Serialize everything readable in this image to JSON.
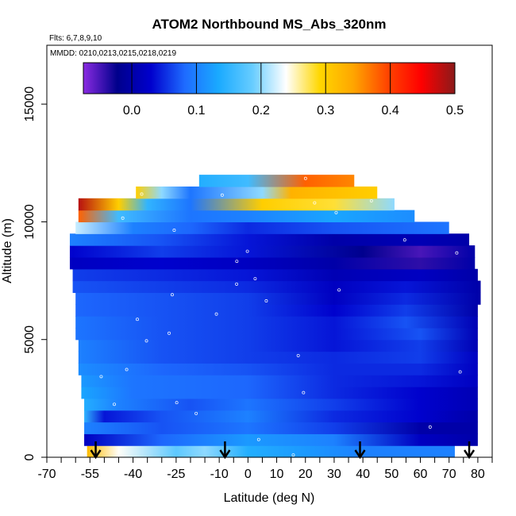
{
  "chart_data": {
    "type": "heatmap",
    "title": "ATOM2 Northbound MS_Abs_320nm",
    "flights_label": "Flts: 6,7,8,9,10",
    "dates_label": "MMDD: 0210,0213,0215,0218,0219",
    "xlabel": "Latitude (deg N)",
    "ylabel": "Altitude (m)",
    "xlim": [
      -70,
      85
    ],
    "ylim": [
      0,
      17500
    ],
    "x_ticks": [
      -70,
      -55,
      -40,
      -25,
      -10,
      0,
      10,
      20,
      30,
      40,
      50,
      60,
      70,
      80
    ],
    "x_minor_ticks": [
      -65,
      -60,
      -50,
      -45,
      -35,
      -30,
      -20,
      -15,
      -5,
      5,
      15,
      25,
      35,
      45,
      55,
      65,
      75,
      85
    ],
    "y_ticks": [
      0,
      5000,
      10000,
      15000
    ],
    "colorbar": {
      "range": [
        -0.075,
        0.5
      ],
      "ticks": [
        0.0,
        0.1,
        0.2,
        0.3,
        0.4,
        0.5
      ],
      "tick_labels": [
        "0.0",
        "0.1",
        "0.2",
        "0.3",
        "0.4",
        "0.5"
      ],
      "colors": [
        "#8a2be2",
        "#00008b",
        "#0000cd",
        "#1e6bff",
        "#1aaaff",
        "#66ccff",
        "#ffffff",
        "#ffd700",
        "#ffa500",
        "#ff4500",
        "#ff0000",
        "#8b1a1a"
      ]
    },
    "arrows_latitude": [
      -53,
      -8,
      39,
      77
    ],
    "layers": [
      {
        "alt": 250,
        "lat": [
          -56,
          72
        ],
        "values": [
          {
            "x": -56,
            "v": 0.32
          },
          {
            "x": -45,
            "v": 0.24
          },
          {
            "x": -25,
            "v": 0.18
          },
          {
            "x": -15,
            "v": 0.2
          },
          {
            "x": 0,
            "v": 0.14
          },
          {
            "x": 20,
            "v": 0.12
          },
          {
            "x": 40,
            "v": 0.1
          },
          {
            "x": 60,
            "v": 0.1
          },
          {
            "x": 72,
            "v": 0.1
          }
        ]
      },
      {
        "alt": 750,
        "lat": [
          -57,
          80
        ],
        "values": [
          {
            "x": -57,
            "v": 0.02
          },
          {
            "x": -30,
            "v": 0.08
          },
          {
            "x": 0,
            "v": 0.12
          },
          {
            "x": 30,
            "v": 0.1
          },
          {
            "x": 60,
            "v": 0.02
          },
          {
            "x": 80,
            "v": 0.0
          }
        ]
      },
      {
        "alt": 1250,
        "lat": [
          -57,
          80
        ],
        "values": [
          {
            "x": -57,
            "v": 0.1
          },
          {
            "x": -30,
            "v": 0.07
          },
          {
            "x": 0,
            "v": 0.09
          },
          {
            "x": 30,
            "v": 0.06
          },
          {
            "x": 60,
            "v": 0.0
          },
          {
            "x": 80,
            "v": 0.0
          }
        ]
      },
      {
        "alt": 1750,
        "lat": [
          -57,
          80
        ],
        "values": [
          {
            "x": -57,
            "v": 0.15
          },
          {
            "x": -50,
            "v": 0.04
          },
          {
            "x": -30,
            "v": 0.07
          },
          {
            "x": 0,
            "v": 0.1
          },
          {
            "x": 30,
            "v": 0.05
          },
          {
            "x": 60,
            "v": 0.03
          },
          {
            "x": 80,
            "v": 0.0
          }
        ]
      },
      {
        "alt": 2250,
        "lat": [
          -57,
          80
        ],
        "values": [
          {
            "x": -57,
            "v": 0.14
          },
          {
            "x": -45,
            "v": 0.1
          },
          {
            "x": -20,
            "v": 0.07
          },
          {
            "x": 0,
            "v": 0.09
          },
          {
            "x": 30,
            "v": 0.06
          },
          {
            "x": 60,
            "v": 0.03
          },
          {
            "x": 80,
            "v": 0.01
          }
        ]
      },
      {
        "alt": 2750,
        "lat": [
          -58,
          80
        ],
        "values": [
          {
            "x": -58,
            "v": 0.13
          },
          {
            "x": -40,
            "v": 0.09
          },
          {
            "x": 0,
            "v": 0.08
          },
          {
            "x": 30,
            "v": 0.05
          },
          {
            "x": 60,
            "v": 0.03
          },
          {
            "x": 80,
            "v": 0.01
          }
        ]
      },
      {
        "alt": 3250,
        "lat": [
          -58,
          80
        ],
        "values": [
          {
            "x": -58,
            "v": 0.12
          },
          {
            "x": -40,
            "v": 0.09
          },
          {
            "x": 0,
            "v": 0.08
          },
          {
            "x": 30,
            "v": 0.05
          },
          {
            "x": 60,
            "v": 0.04
          },
          {
            "x": 80,
            "v": 0.02
          }
        ]
      },
      {
        "alt": 3750,
        "lat": [
          -59,
          80
        ],
        "values": [
          {
            "x": -59,
            "v": 0.11
          },
          {
            "x": -30,
            "v": 0.08
          },
          {
            "x": 0,
            "v": 0.07
          },
          {
            "x": 30,
            "v": 0.05
          },
          {
            "x": 60,
            "v": 0.05
          },
          {
            "x": 80,
            "v": 0.02
          }
        ]
      },
      {
        "alt": 4250,
        "lat": [
          -59,
          80
        ],
        "values": [
          {
            "x": -59,
            "v": 0.1
          },
          {
            "x": -30,
            "v": 0.07
          },
          {
            "x": 0,
            "v": 0.06
          },
          {
            "x": 30,
            "v": 0.05
          },
          {
            "x": 60,
            "v": 0.06
          },
          {
            "x": 80,
            "v": 0.02
          }
        ]
      },
      {
        "alt": 4750,
        "lat": [
          -59,
          80
        ],
        "values": [
          {
            "x": -59,
            "v": 0.1
          },
          {
            "x": -30,
            "v": 0.07
          },
          {
            "x": 0,
            "v": 0.06
          },
          {
            "x": 30,
            "v": 0.04
          },
          {
            "x": 60,
            "v": 0.06
          },
          {
            "x": 80,
            "v": 0.01
          }
        ]
      },
      {
        "alt": 5250,
        "lat": [
          -60,
          80
        ],
        "values": [
          {
            "x": -60,
            "v": 0.09
          },
          {
            "x": -30,
            "v": 0.07
          },
          {
            "x": 0,
            "v": 0.06
          },
          {
            "x": 30,
            "v": 0.04
          },
          {
            "x": 60,
            "v": 0.07
          },
          {
            "x": 80,
            "v": 0.01
          }
        ]
      },
      {
        "alt": 5750,
        "lat": [
          -60,
          80
        ],
        "values": [
          {
            "x": -60,
            "v": 0.09
          },
          {
            "x": -30,
            "v": 0.07
          },
          {
            "x": 0,
            "v": 0.06
          },
          {
            "x": 30,
            "v": 0.04
          },
          {
            "x": 55,
            "v": 0.07
          },
          {
            "x": 80,
            "v": 0.01
          }
        ]
      },
      {
        "alt": 6250,
        "lat": [
          -60,
          80
        ],
        "values": [
          {
            "x": -60,
            "v": 0.08
          },
          {
            "x": -30,
            "v": 0.07
          },
          {
            "x": 0,
            "v": 0.06
          },
          {
            "x": 30,
            "v": 0.03
          },
          {
            "x": 55,
            "v": 0.06
          },
          {
            "x": 80,
            "v": 0.0
          }
        ]
      },
      {
        "alt": 6750,
        "lat": [
          -60,
          81
        ],
        "values": [
          {
            "x": -60,
            "v": 0.08
          },
          {
            "x": -30,
            "v": 0.07
          },
          {
            "x": 0,
            "v": 0.06
          },
          {
            "x": 30,
            "v": 0.02
          },
          {
            "x": 55,
            "v": 0.05
          },
          {
            "x": 81,
            "v": 0.0
          }
        ]
      },
      {
        "alt": 7250,
        "lat": [
          -61,
          81
        ],
        "values": [
          {
            "x": -61,
            "v": 0.07
          },
          {
            "x": -30,
            "v": 0.06
          },
          {
            "x": 0,
            "v": 0.05
          },
          {
            "x": 30,
            "v": 0.02
          },
          {
            "x": 55,
            "v": 0.04
          },
          {
            "x": 81,
            "v": 0.0
          }
        ]
      },
      {
        "alt": 7750,
        "lat": [
          -61,
          80
        ],
        "values": [
          {
            "x": -61,
            "v": 0.06
          },
          {
            "x": -30,
            "v": 0.05
          },
          {
            "x": 0,
            "v": 0.04
          },
          {
            "x": 30,
            "v": 0.01
          },
          {
            "x": 60,
            "v": 0.02
          },
          {
            "x": 80,
            "v": 0.0
          }
        ]
      },
      {
        "alt": 8250,
        "lat": [
          -62,
          79
        ],
        "values": [
          {
            "x": -62,
            "v": 0.02
          },
          {
            "x": -30,
            "v": 0.03
          },
          {
            "x": 0,
            "v": 0.02
          },
          {
            "x": 30,
            "v": 0.0
          },
          {
            "x": 60,
            "v": -0.04
          },
          {
            "x": 79,
            "v": 0.0
          }
        ]
      },
      {
        "alt": 8750,
        "lat": [
          -62,
          79
        ],
        "values": [
          {
            "x": -62,
            "v": 0.03
          },
          {
            "x": -30,
            "v": 0.06
          },
          {
            "x": 0,
            "v": 0.04
          },
          {
            "x": 40,
            "v": -0.02
          },
          {
            "x": 60,
            "v": -0.05
          },
          {
            "x": 79,
            "v": 0.0
          }
        ]
      },
      {
        "alt": 9250,
        "lat": [
          -62,
          77
        ],
        "values": [
          {
            "x": -62,
            "v": 0.1
          },
          {
            "x": -30,
            "v": 0.07
          },
          {
            "x": 0,
            "v": 0.04
          },
          {
            "x": 30,
            "v": 0.0
          },
          {
            "x": 60,
            "v": 0.01
          },
          {
            "x": 77,
            "v": 0.0
          }
        ]
      },
      {
        "alt": 9750,
        "lat": [
          -60,
          70
        ],
        "values": [
          {
            "x": -60,
            "v": 0.22
          },
          {
            "x": -40,
            "v": 0.1
          },
          {
            "x": -20,
            "v": 0.08
          },
          {
            "x": 0,
            "v": 0.05
          },
          {
            "x": 30,
            "v": 0.07
          },
          {
            "x": 70,
            "v": 0.09
          }
        ]
      },
      {
        "alt": 10250,
        "lat": [
          -59,
          58
        ],
        "values": [
          {
            "x": -59,
            "v": 0.38
          },
          {
            "x": -45,
            "v": 0.16
          },
          {
            "x": -20,
            "v": 0.09
          },
          {
            "x": 0,
            "v": 0.1
          },
          {
            "x": 30,
            "v": 0.13
          },
          {
            "x": 58,
            "v": 0.11
          }
        ]
      },
      {
        "alt": 10750,
        "lat": [
          -59,
          51
        ],
        "values": [
          {
            "x": -59,
            "v": 0.48
          },
          {
            "x": -45,
            "v": 0.3
          },
          {
            "x": -35,
            "v": 0.15
          },
          {
            "x": -20,
            "v": 0.09
          },
          {
            "x": 5,
            "v": 0.3
          },
          {
            "x": 30,
            "v": 0.28
          },
          {
            "x": 51,
            "v": 0.2
          }
        ]
      },
      {
        "alt": 11250,
        "lat": [
          -39,
          45
        ],
        "values": [
          {
            "x": -39,
            "v": 0.3
          },
          {
            "x": -30,
            "v": 0.2
          },
          {
            "x": -20,
            "v": 0.09
          },
          {
            "x": 5,
            "v": 0.2
          },
          {
            "x": 15,
            "v": 0.33
          },
          {
            "x": 45,
            "v": 0.3
          }
        ]
      },
      {
        "alt": 11750,
        "lat": [
          -17,
          37
        ],
        "values": [
          {
            "x": -17,
            "v": 0.14
          },
          {
            "x": 0,
            "v": 0.16
          },
          {
            "x": 20,
            "v": 0.38
          },
          {
            "x": 37,
            "v": 0.36
          }
        ]
      }
    ]
  }
}
